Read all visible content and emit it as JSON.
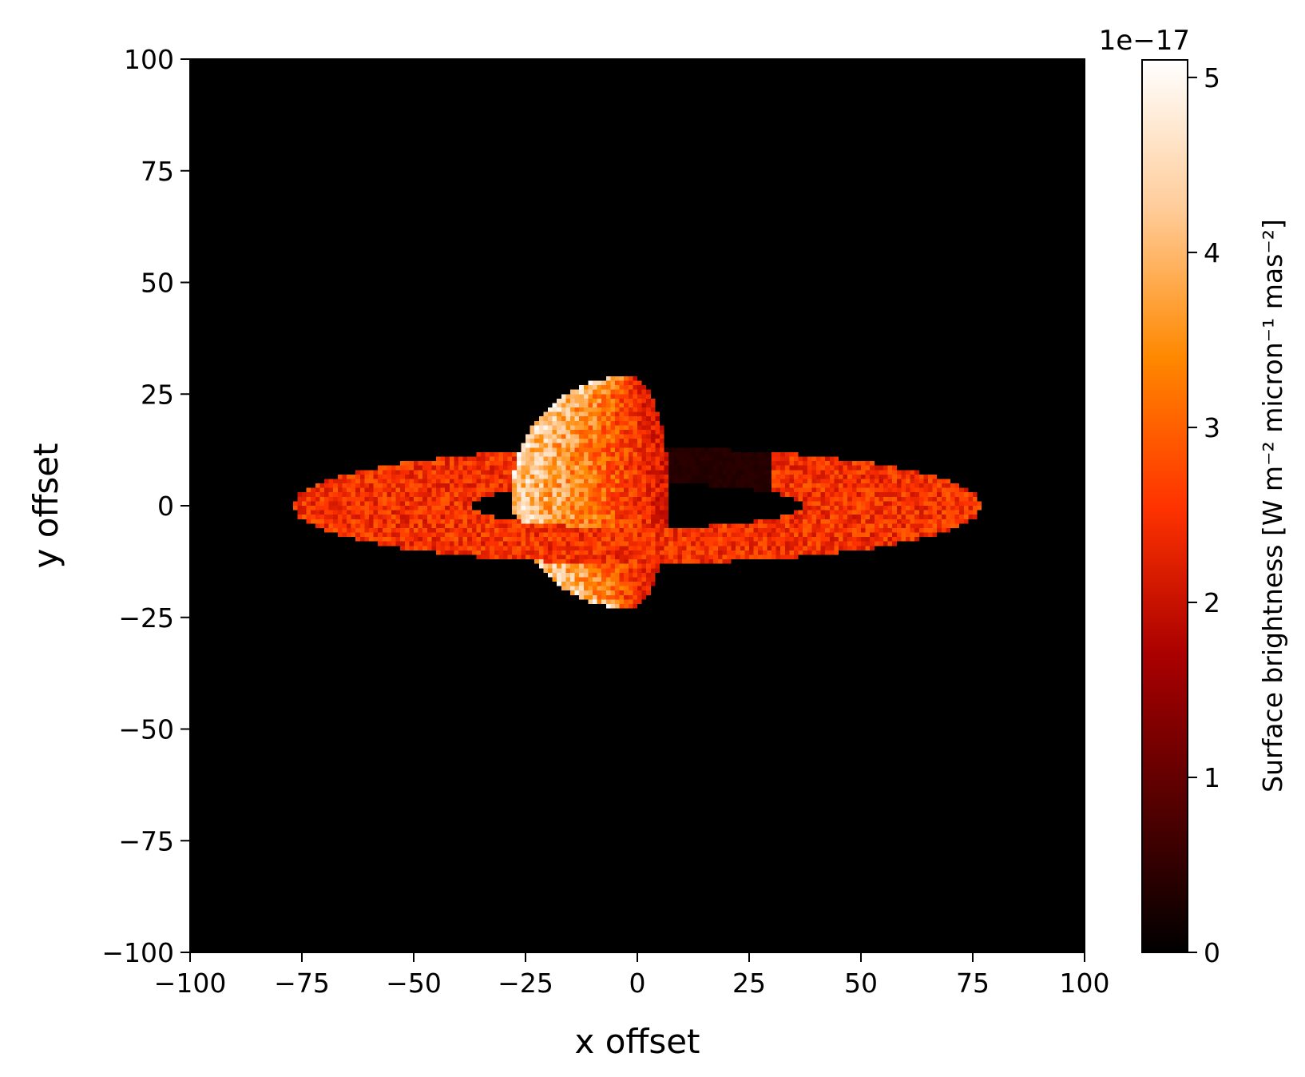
{
  "chart_data": {
    "type": "heatmap",
    "title": "",
    "xlabel": "x offset",
    "ylabel": "y offset",
    "xlim": [
      -100,
      100
    ],
    "ylim": [
      -100,
      100
    ],
    "x_ticks": [
      -100,
      -75,
      -50,
      -25,
      0,
      25,
      50,
      75,
      100
    ],
    "y_ticks": [
      -100,
      -75,
      -50,
      -25,
      0,
      25,
      50,
      75,
      100
    ],
    "x_tick_labels": [
      "−100",
      "−75",
      "−50",
      "−25",
      "0",
      "25",
      "50",
      "75",
      "100"
    ],
    "y_tick_labels": [
      "−100",
      "−75",
      "−50",
      "−25",
      "0",
      "25",
      "50",
      "75",
      "100"
    ],
    "grid": false,
    "colormap": "gist_heat",
    "colorbar": {
      "label": "Surface brightness [W m⁻² micron⁻¹ mas⁻²]",
      "offset_text": "1e−17",
      "range": [
        0,
        5.1
      ],
      "ticks": [
        0,
        1,
        2,
        3,
        4,
        5
      ],
      "tick_labels": [
        "0",
        "1",
        "2",
        "3",
        "4",
        "5"
      ]
    },
    "image": {
      "grid_resolution": 200,
      "background_value": 0,
      "features": [
        {
          "name": "planet",
          "shape": "disk",
          "center": [
            -2,
            3
          ],
          "radius": 26,
          "illuminated_side": "left (lit crescent / half-disk)",
          "peak_brightness": 5.1,
          "typical_brightness": 3.8
        },
        {
          "name": "ring",
          "shape": "elliptical annulus",
          "center": [
            0,
            0
          ],
          "outer_semi_axes": [
            77,
            13
          ],
          "inner_semi_axes": [
            37,
            5
          ],
          "typical_brightness": 2.5,
          "shadowed_by_planet": true
        }
      ]
    }
  },
  "colors": {
    "background": "#ffffff",
    "axes_background": "#000000",
    "colormap_stops": [
      "#000000",
      "#550000",
      "#aa0000",
      "#ff3300",
      "#ff8800",
      "#ffcc99",
      "#ffffff"
    ]
  }
}
